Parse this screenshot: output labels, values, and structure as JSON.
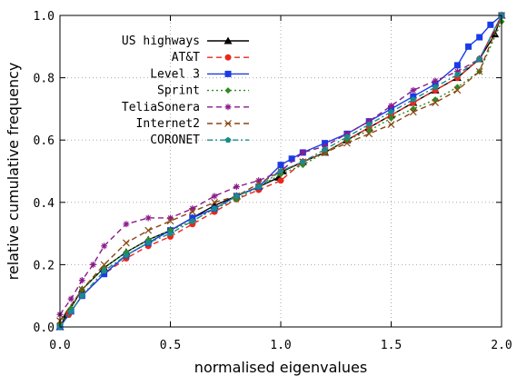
{
  "chart_data": {
    "type": "line",
    "title": "",
    "xlabel": "normalised eigenvalues",
    "ylabel": "relative cumulative frequency",
    "xlim": [
      0.0,
      2.0
    ],
    "ylim": [
      0.0,
      1.0
    ],
    "xticks": [
      "0.0",
      "0.5",
      "1.0",
      "1.5",
      "2.0"
    ],
    "yticks": [
      "0.0",
      "0.2",
      "0.4",
      "0.6",
      "0.8",
      "1.0"
    ],
    "grid": true,
    "legend_position": "top-left",
    "series": [
      {
        "name": "US highways",
        "color": "#000000",
        "marker": "triangle",
        "dash": "solid",
        "x": [
          0.0,
          0.03,
          0.1,
          0.2,
          0.3,
          0.4,
          0.5,
          0.6,
          0.7,
          0.8,
          0.9,
          0.99,
          1.01,
          1.1,
          1.2,
          1.3,
          1.4,
          1.5,
          1.6,
          1.7,
          1.8,
          1.9,
          1.97,
          2.0
        ],
        "y": [
          0.0,
          0.04,
          0.12,
          0.19,
          0.24,
          0.28,
          0.31,
          0.35,
          0.39,
          0.42,
          0.45,
          0.48,
          0.5,
          0.53,
          0.56,
          0.6,
          0.64,
          0.68,
          0.72,
          0.76,
          0.8,
          0.86,
          0.94,
          1.0
        ]
      },
      {
        "name": "AT&T",
        "color": "#e8281e",
        "marker": "circle",
        "dash": "dash",
        "x": [
          0.0,
          0.04,
          0.1,
          0.2,
          0.3,
          0.4,
          0.5,
          0.6,
          0.7,
          0.8,
          0.9,
          1.0,
          1.1,
          1.2,
          1.3,
          1.4,
          1.5,
          1.6,
          1.7,
          1.8,
          1.9,
          2.0
        ],
        "y": [
          0.0,
          0.04,
          0.1,
          0.17,
          0.22,
          0.26,
          0.29,
          0.33,
          0.37,
          0.41,
          0.44,
          0.47,
          0.53,
          0.56,
          0.6,
          0.64,
          0.68,
          0.72,
          0.76,
          0.8,
          0.86,
          1.0
        ]
      },
      {
        "name": "Level 3",
        "color": "#1a3be6",
        "marker": "square",
        "dash": "solid",
        "x": [
          0.0,
          0.05,
          0.1,
          0.2,
          0.3,
          0.4,
          0.5,
          0.6,
          0.7,
          0.8,
          0.9,
          1.0,
          1.05,
          1.1,
          1.2,
          1.3,
          1.4,
          1.5,
          1.6,
          1.7,
          1.8,
          1.85,
          1.9,
          1.95,
          2.0
        ],
        "y": [
          0.0,
          0.05,
          0.1,
          0.17,
          0.23,
          0.27,
          0.31,
          0.35,
          0.38,
          0.42,
          0.45,
          0.52,
          0.54,
          0.56,
          0.59,
          0.62,
          0.66,
          0.7,
          0.74,
          0.78,
          0.84,
          0.9,
          0.93,
          0.97,
          1.0
        ]
      },
      {
        "name": "Sprint",
        "color": "#2e8b22",
        "marker": "diamond",
        "dash": "dot",
        "x": [
          0.0,
          0.05,
          0.1,
          0.2,
          0.3,
          0.4,
          0.5,
          0.6,
          0.7,
          0.8,
          0.9,
          1.0,
          1.1,
          1.2,
          1.3,
          1.4,
          1.5,
          1.6,
          1.7,
          1.8,
          1.9,
          2.0
        ],
        "y": [
          0.01,
          0.06,
          0.12,
          0.19,
          0.24,
          0.28,
          0.31,
          0.34,
          0.38,
          0.41,
          0.45,
          0.49,
          0.52,
          0.56,
          0.6,
          0.63,
          0.67,
          0.7,
          0.73,
          0.77,
          0.82,
          0.98
        ]
      },
      {
        "name": "TeliaSonera",
        "color": "#8b1a8b",
        "marker": "star",
        "dash": "dash",
        "x": [
          0.0,
          0.05,
          0.1,
          0.15,
          0.2,
          0.3,
          0.4,
          0.5,
          0.6,
          0.7,
          0.8,
          0.9,
          1.0,
          1.1,
          1.2,
          1.3,
          1.4,
          1.5,
          1.6,
          1.7,
          1.8,
          1.9,
          2.0
        ],
        "y": [
          0.04,
          0.09,
          0.15,
          0.2,
          0.26,
          0.33,
          0.35,
          0.35,
          0.38,
          0.42,
          0.45,
          0.47,
          0.5,
          0.56,
          0.58,
          0.62,
          0.66,
          0.71,
          0.76,
          0.79,
          0.82,
          0.86,
          1.0
        ]
      },
      {
        "name": "Internet2",
        "color": "#8b4513",
        "marker": "x",
        "dash": "dash",
        "x": [
          0.0,
          0.1,
          0.2,
          0.3,
          0.4,
          0.5,
          0.6,
          0.7,
          0.8,
          0.9,
          1.0,
          1.1,
          1.2,
          1.3,
          1.4,
          1.5,
          1.6,
          1.7,
          1.8,
          1.9,
          2.0
        ],
        "y": [
          0.02,
          0.12,
          0.2,
          0.27,
          0.31,
          0.34,
          0.37,
          0.4,
          0.42,
          0.46,
          0.5,
          0.53,
          0.56,
          0.59,
          0.62,
          0.65,
          0.69,
          0.72,
          0.76,
          0.82,
          1.0
        ]
      },
      {
        "name": "CORONET",
        "color": "#1a8b8b",
        "marker": "pentagon",
        "dash": "dashdot",
        "x": [
          0.0,
          0.05,
          0.1,
          0.2,
          0.3,
          0.4,
          0.5,
          0.6,
          0.7,
          0.8,
          0.9,
          1.0,
          1.1,
          1.2,
          1.3,
          1.4,
          1.5,
          1.6,
          1.7,
          1.8,
          1.9,
          2.0
        ],
        "y": [
          0.0,
          0.05,
          0.1,
          0.18,
          0.23,
          0.27,
          0.3,
          0.34,
          0.38,
          0.42,
          0.45,
          0.5,
          0.53,
          0.57,
          0.61,
          0.65,
          0.69,
          0.73,
          0.77,
          0.81,
          0.86,
          1.0
        ]
      }
    ]
  }
}
